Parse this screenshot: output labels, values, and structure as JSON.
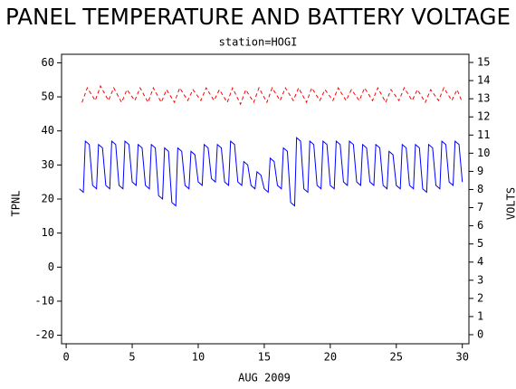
{
  "chart_data": {
    "type": "line",
    "title": "PANEL TEMPERATURE AND BATTERY VOLTAGE",
    "subtitle": "station=HOGI",
    "x_label": "AUG 2009",
    "y_label": "TPNL",
    "y2_label": "VOLTS",
    "xlim": [
      -0.35,
      30.5
    ],
    "xticks": [
      0,
      5,
      10,
      15,
      20,
      25,
      30
    ],
    "ylim": [
      -22.5,
      62.5
    ],
    "yticks": [
      -20,
      -10,
      0,
      10,
      20,
      30,
      40,
      50,
      60
    ],
    "y2lim": [
      -0.5,
      15.45
    ],
    "y2ticks": [
      0,
      1,
      2,
      3,
      4,
      5,
      6,
      7,
      8,
      9,
      10,
      11,
      12,
      13,
      14,
      15
    ],
    "series": [
      {
        "color": "#0000ff",
        "dash": false,
        "x": [
          1,
          1.3,
          1.45,
          1.75,
          2,
          2.3,
          2.45,
          2.75,
          3,
          3.3,
          3.45,
          3.75,
          4,
          4.3,
          4.45,
          4.75,
          5,
          5.3,
          5.45,
          5.75,
          6,
          6.3,
          6.45,
          6.75,
          7,
          7.3,
          7.45,
          7.75,
          8,
          8.3,
          8.45,
          8.75,
          9,
          9.3,
          9.45,
          9.75,
          10,
          10.3,
          10.45,
          10.75,
          11,
          11.3,
          11.45,
          11.75,
          12,
          12.3,
          12.45,
          12.75,
          13,
          13.3,
          13.45,
          13.75,
          14,
          14.3,
          14.45,
          14.75,
          15,
          15.3,
          15.45,
          15.75,
          16,
          16.3,
          16.45,
          16.75,
          17,
          17.3,
          17.45,
          17.75,
          18,
          18.3,
          18.45,
          18.75,
          19,
          19.3,
          19.45,
          19.75,
          20,
          20.3,
          20.45,
          20.75,
          21,
          21.3,
          21.45,
          21.75,
          22,
          22.3,
          22.45,
          22.75,
          23,
          23.3,
          23.45,
          23.75,
          24,
          24.3,
          24.45,
          24.75,
          25,
          25.3,
          25.45,
          25.75,
          26,
          26.3,
          26.45,
          26.75,
          27,
          27.3,
          27.45,
          27.75,
          28,
          28.3,
          28.45,
          28.75,
          29,
          29.3,
          29.45,
          29.75,
          30
        ],
        "values": [
          23,
          22,
          37,
          36,
          24,
          23,
          36,
          35,
          24,
          23,
          37,
          36,
          24,
          23,
          37,
          36,
          25,
          24,
          36,
          35,
          24,
          23,
          36,
          35,
          21,
          20,
          35,
          34,
          19,
          18,
          35,
          34,
          24,
          23,
          34,
          33,
          25,
          24,
          36,
          35,
          26,
          25,
          36,
          35,
          25,
          24,
          37,
          36,
          25,
          24,
          31,
          30,
          24,
          23,
          28,
          27,
          23,
          22,
          32,
          31,
          24,
          23,
          35,
          34,
          19,
          18,
          38,
          37,
          23,
          22,
          37,
          36,
          24,
          23,
          37,
          36,
          24,
          23,
          37,
          36,
          25,
          24,
          37,
          36,
          25,
          24,
          36,
          35,
          25,
          24,
          36,
          35,
          24,
          23,
          34,
          33,
          24,
          23,
          36,
          35,
          24,
          23,
          36,
          35,
          23,
          22,
          36,
          35,
          24,
          23,
          37,
          36,
          25,
          24,
          37,
          36,
          25
        ]
      },
      {
        "color": "#ff0000",
        "dash": true,
        "axis": "y2",
        "x": [
          1.2,
          1.6,
          2.2,
          2.6,
          3.2,
          3.6,
          4.2,
          4.6,
          5.2,
          5.6,
          6.2,
          6.6,
          7.2,
          7.6,
          8.2,
          8.6,
          9.2,
          9.6,
          10.2,
          10.6,
          11.2,
          11.6,
          12.2,
          12.6,
          13.2,
          13.6,
          14.2,
          14.6,
          15.2,
          15.6,
          16.2,
          16.6,
          17.2,
          17.6,
          18.2,
          18.6,
          19.2,
          19.6,
          20.2,
          20.6,
          21.2,
          21.6,
          22.2,
          22.6,
          23.2,
          23.6,
          24.2,
          24.6,
          25.2,
          25.6,
          26.2,
          26.6,
          27.2,
          27.6,
          28.2,
          28.6,
          29.2,
          29.6,
          30
        ],
        "values": [
          12.8,
          13.6,
          12.9,
          13.7,
          12.9,
          13.6,
          12.8,
          13.5,
          12.9,
          13.6,
          12.8,
          13.6,
          12.8,
          13.5,
          12.8,
          13.6,
          12.9,
          13.5,
          12.9,
          13.6,
          12.9,
          13.5,
          12.8,
          13.6,
          12.7,
          13.5,
          12.8,
          13.6,
          12.8,
          13.6,
          12.9,
          13.6,
          12.9,
          13.6,
          12.8,
          13.6,
          12.9,
          13.5,
          12.9,
          13.6,
          12.9,
          13.5,
          12.9,
          13.6,
          12.9,
          13.6,
          12.8,
          13.5,
          12.9,
          13.6,
          12.9,
          13.5,
          12.8,
          13.5,
          12.9,
          13.6,
          12.9,
          13.5,
          12.8
        ]
      }
    ]
  }
}
